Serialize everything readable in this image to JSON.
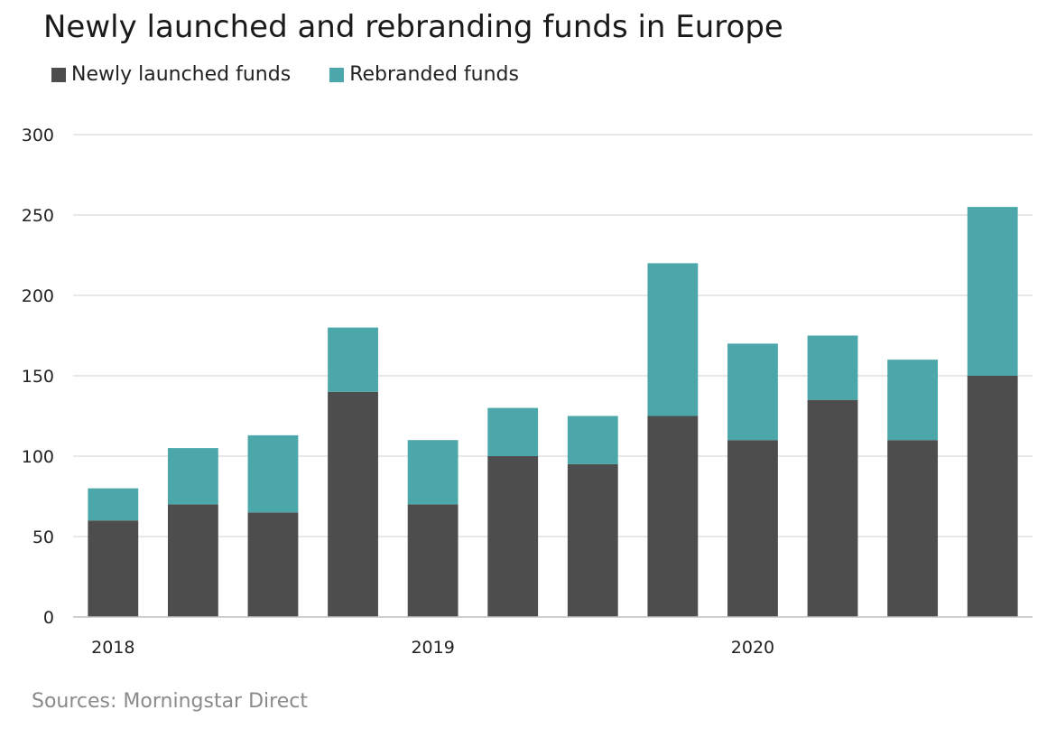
{
  "chart_data": {
    "type": "bar",
    "stacked": true,
    "title": "Newly launched and rebranding funds in Europe",
    "categories": [
      "2018",
      "",
      "",
      "",
      "2019",
      "",
      "",
      "",
      "2020",
      "",
      "",
      ""
    ],
    "series": [
      {
        "name": "Newly launched funds",
        "color": "#4d4d4d",
        "values": [
          60,
          70,
          65,
          140,
          70,
          100,
          95,
          125,
          110,
          135,
          110,
          150
        ]
      },
      {
        "name": "Rebranded funds",
        "color": "#4ba7a9",
        "values": [
          20,
          35,
          48,
          40,
          40,
          30,
          30,
          95,
          60,
          40,
          50,
          105
        ]
      }
    ],
    "ylim": [
      0,
      300
    ],
    "yticks": [
      0,
      50,
      100,
      150,
      200,
      250,
      300
    ],
    "grid": true,
    "legend_position": "top-left"
  },
  "source": "Sources: Morningstar Direct"
}
